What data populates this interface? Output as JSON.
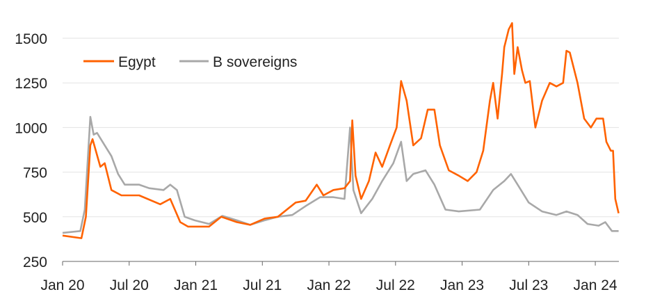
{
  "chart_data": {
    "type": "line",
    "title": "",
    "xlabel": "",
    "ylabel": "",
    "ylim": [
      250,
      1600
    ],
    "xlim_months_since_jan20": [
      0,
      50.2
    ],
    "yticks": [
      250,
      500,
      750,
      1000,
      1250,
      1500
    ],
    "xticks": [
      {
        "label": "Jan 20",
        "month": 0
      },
      {
        "label": "Jul 20",
        "month": 6
      },
      {
        "label": "Jan 21",
        "month": 12
      },
      {
        "label": "Jul 21",
        "month": 18
      },
      {
        "label": "Jan 22",
        "month": 24
      },
      {
        "label": "Jul 22",
        "month": 30
      },
      {
        "label": "Jan 23",
        "month": 36
      },
      {
        "label": "Jul 23",
        "month": 42
      },
      {
        "label": "Jan 24",
        "month": 48
      }
    ],
    "grid": "horizontal",
    "legend_position": "top-left",
    "series": [
      {
        "name": "Egypt",
        "color": "#FF6200",
        "points": [
          [
            0,
            395
          ],
          [
            1.7,
            380
          ],
          [
            2.1,
            500
          ],
          [
            2.5,
            900
          ],
          [
            2.7,
            935
          ],
          [
            3.4,
            780
          ],
          [
            3.8,
            800
          ],
          [
            4.4,
            650
          ],
          [
            5.3,
            620
          ],
          [
            6.9,
            620
          ],
          [
            8.8,
            570
          ],
          [
            9.7,
            600
          ],
          [
            10.6,
            470
          ],
          [
            11.3,
            445
          ],
          [
            13.2,
            445
          ],
          [
            14.3,
            500
          ],
          [
            15.7,
            470
          ],
          [
            16.9,
            455
          ],
          [
            18.2,
            490
          ],
          [
            19.4,
            500
          ],
          [
            21,
            580
          ],
          [
            21.9,
            590
          ],
          [
            22.9,
            680
          ],
          [
            23.5,
            620
          ],
          [
            24.4,
            650
          ],
          [
            25.4,
            660
          ],
          [
            25.9,
            700
          ],
          [
            26.1,
            1040
          ],
          [
            26.4,
            730
          ],
          [
            26.9,
            600
          ],
          [
            27.6,
            700
          ],
          [
            28.2,
            860
          ],
          [
            28.8,
            780
          ],
          [
            29.5,
            900
          ],
          [
            30.1,
            1000
          ],
          [
            30.5,
            1260
          ],
          [
            31,
            1150
          ],
          [
            31.6,
            900
          ],
          [
            32.3,
            940
          ],
          [
            32.9,
            1100
          ],
          [
            33.5,
            1100
          ],
          [
            34,
            900
          ],
          [
            34.8,
            760
          ],
          [
            35.7,
            730
          ],
          [
            36.5,
            700
          ],
          [
            37.3,
            750
          ],
          [
            37.9,
            870
          ],
          [
            38.5,
            1150
          ],
          [
            38.8,
            1250
          ],
          [
            39.2,
            1050
          ],
          [
            39.6,
            1300
          ],
          [
            39.8,
            1450
          ],
          [
            40.2,
            1550
          ],
          [
            40.5,
            1585
          ],
          [
            40.7,
            1300
          ],
          [
            41,
            1450
          ],
          [
            41.4,
            1320
          ],
          [
            41.7,
            1250
          ],
          [
            42.1,
            1260
          ],
          [
            42.6,
            1000
          ],
          [
            43.2,
            1150
          ],
          [
            43.9,
            1250
          ],
          [
            44.5,
            1230
          ],
          [
            45.1,
            1250
          ],
          [
            45.4,
            1430
          ],
          [
            45.7,
            1420
          ],
          [
            46.4,
            1250
          ],
          [
            47,
            1050
          ],
          [
            47.6,
            1000
          ],
          [
            48.1,
            1050
          ],
          [
            48.7,
            1050
          ],
          [
            49,
            920
          ],
          [
            49.4,
            870
          ],
          [
            49.6,
            870
          ],
          [
            49.8,
            600
          ],
          [
            50.1,
            520
          ]
        ]
      },
      {
        "name": "B sovereigns",
        "color": "#A8A8A8",
        "points": [
          [
            0,
            410
          ],
          [
            1.6,
            420
          ],
          [
            2,
            540
          ],
          [
            2.5,
            1060
          ],
          [
            2.8,
            960
          ],
          [
            3.1,
            970
          ],
          [
            3.8,
            900
          ],
          [
            4.4,
            840
          ],
          [
            5,
            740
          ],
          [
            5.6,
            680
          ],
          [
            6.9,
            680
          ],
          [
            7.8,
            660
          ],
          [
            9.1,
            650
          ],
          [
            9.7,
            680
          ],
          [
            10.3,
            650
          ],
          [
            11,
            500
          ],
          [
            11.9,
            480
          ],
          [
            13.2,
            460
          ],
          [
            14.4,
            505
          ],
          [
            15.7,
            480
          ],
          [
            16.9,
            455
          ],
          [
            18.2,
            480
          ],
          [
            19.4,
            500
          ],
          [
            20.7,
            510
          ],
          [
            21.9,
            560
          ],
          [
            23.2,
            610
          ],
          [
            24.4,
            610
          ],
          [
            25.4,
            600
          ],
          [
            25.9,
            1000
          ],
          [
            26.2,
            650
          ],
          [
            26.9,
            520
          ],
          [
            27.9,
            600
          ],
          [
            28.8,
            700
          ],
          [
            29.8,
            800
          ],
          [
            30.5,
            920
          ],
          [
            31,
            700
          ],
          [
            31.6,
            740
          ],
          [
            32.7,
            760
          ],
          [
            33.5,
            680
          ],
          [
            34.5,
            540
          ],
          [
            35.7,
            530
          ],
          [
            37.6,
            540
          ],
          [
            38.8,
            650
          ],
          [
            39.8,
            700
          ],
          [
            40.4,
            740
          ],
          [
            41,
            680
          ],
          [
            42,
            580
          ],
          [
            43.2,
            530
          ],
          [
            44.5,
            510
          ],
          [
            45.4,
            530
          ],
          [
            46.4,
            510
          ],
          [
            47.3,
            460
          ],
          [
            48.3,
            450
          ],
          [
            48.9,
            470
          ],
          [
            49.5,
            420
          ],
          [
            50.1,
            420
          ]
        ]
      }
    ]
  }
}
